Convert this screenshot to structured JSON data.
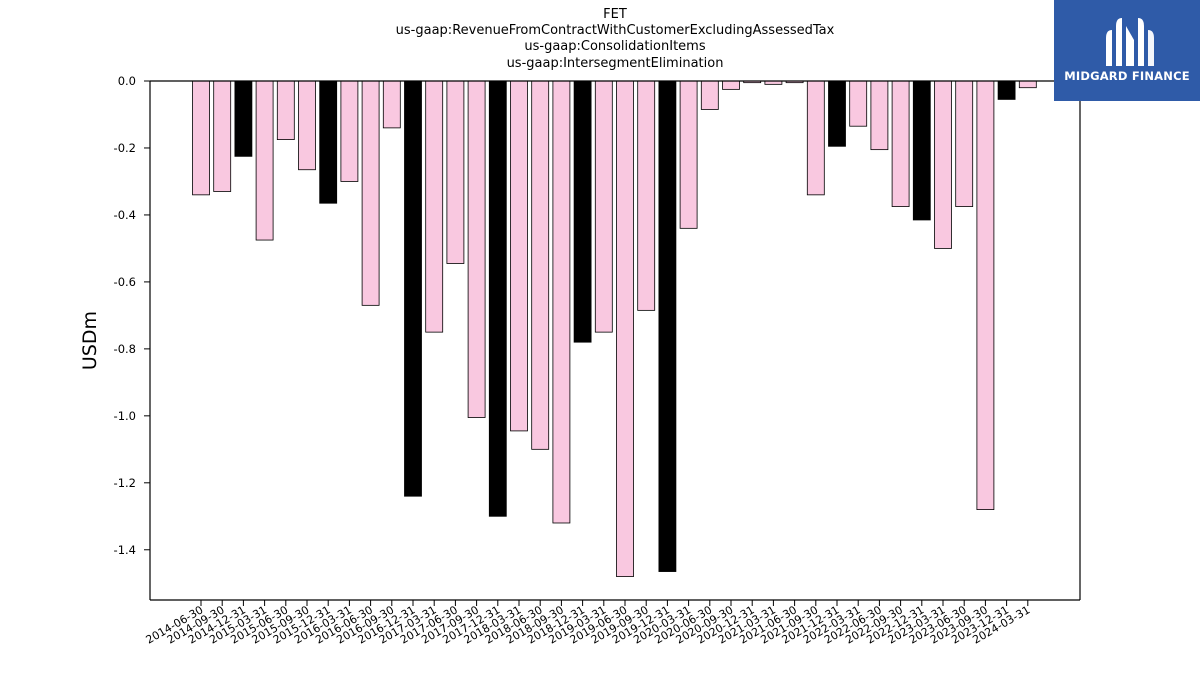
{
  "chart_data": {
    "type": "bar",
    "title_lines": [
      "FET",
      "us-gaap:RevenueFromContractWithCustomerExcludingAssessedTax",
      "us-gaap:ConsolidationItems",
      "us-gaap:IntersegmentElimination"
    ],
    "xlabel": "",
    "ylabel": "USDm",
    "ylim": [
      -1.55,
      0.0
    ],
    "yticks": [
      "0.0",
      "-0.2",
      "-0.4",
      "-0.6",
      "-0.8",
      "-1.0",
      "-1.2",
      "-1.4"
    ],
    "ytick_values": [
      0.0,
      -0.2,
      -0.4,
      -0.6,
      -0.8,
      -1.0,
      -1.2,
      -1.4
    ],
    "grid": false,
    "legend": "none",
    "colors": {
      "quarter": "#f9c8e0",
      "year_end": "#000000",
      "edge": "#000000"
    },
    "categories": [
      "2014-06-30",
      "2014-09-30",
      "2014-12-31",
      "2015-03-31",
      "2015-06-30",
      "2015-09-30",
      "2015-12-31",
      "2016-03-31",
      "2016-06-30",
      "2016-09-30",
      "2016-12-31",
      "2017-03-31",
      "2017-06-30",
      "2017-09-30",
      "2017-12-31",
      "2018-03-31",
      "2018-06-30",
      "2018-09-30",
      "2018-12-31",
      "2019-03-31",
      "2019-06-30",
      "2019-09-30",
      "2019-12-31",
      "2020-03-31",
      "2020-06-30",
      "2020-09-30",
      "2020-12-31",
      "2021-03-31",
      "2021-06-30",
      "2021-09-30",
      "2021-12-31",
      "2022-03-31",
      "2022-06-30",
      "2022-09-30",
      "2022-12-31",
      "2023-03-31",
      "2023-06-30",
      "2023-09-30",
      "2023-12-31",
      "2024-03-31"
    ],
    "values": [
      -0.34,
      -0.33,
      -0.225,
      -0.475,
      -0.175,
      -0.265,
      -0.365,
      -0.3,
      -0.67,
      -0.14,
      -1.24,
      -0.75,
      -0.545,
      -1.005,
      -1.3,
      -1.045,
      -1.1,
      -1.32,
      -0.78,
      -0.75,
      -1.48,
      -0.685,
      -1.465,
      -0.44,
      -0.085,
      -0.025,
      -0.005,
      -0.01,
      -0.005,
      -0.34,
      -0.195,
      -0.135,
      -0.205,
      -0.375,
      -0.415,
      -0.5,
      -0.375,
      -1.28,
      -0.055,
      -0.02
    ]
  },
  "logo": {
    "text": "MIDGARD FINANCE",
    "icon": "midgard-m-icon"
  }
}
